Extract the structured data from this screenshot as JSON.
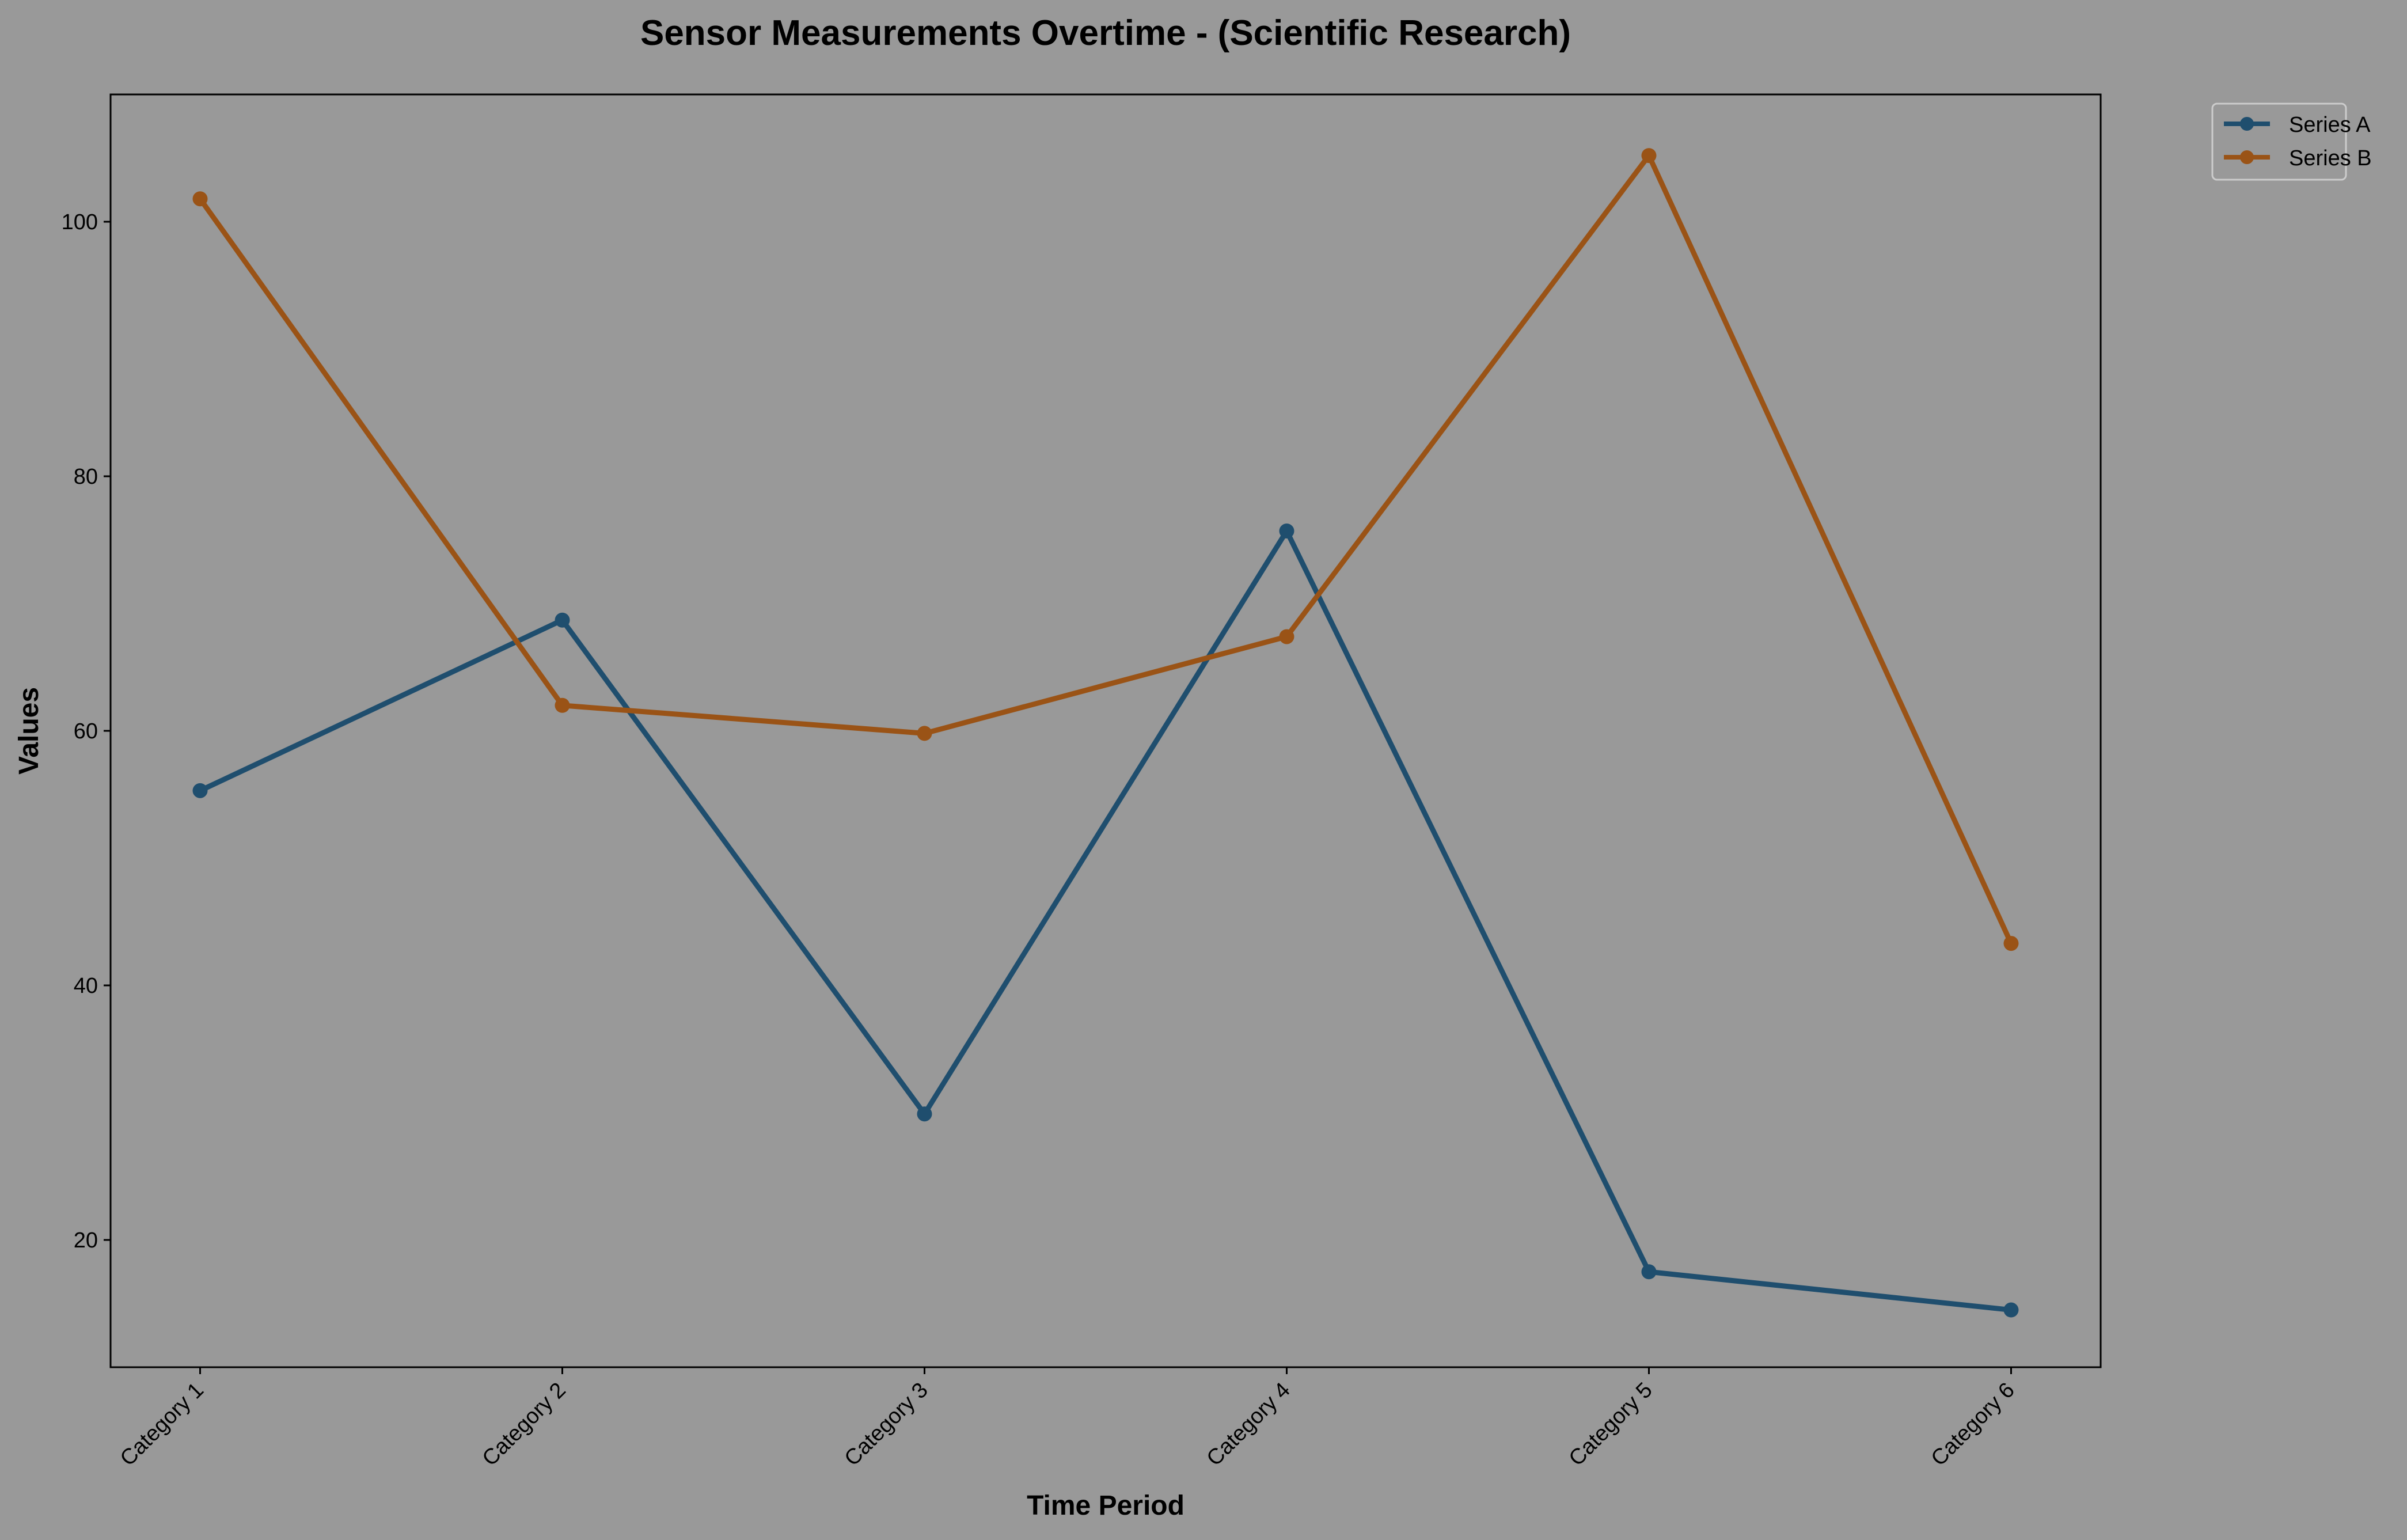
{
  "chart_data": {
    "type": "line",
    "title": "Sensor Measurements Overtime - (Scientific Research)",
    "xlabel": "Time Period",
    "ylabel": "Values",
    "categories": [
      "Category 1",
      "Category 2",
      "Category 3",
      "Category 4",
      "Category 5",
      "Category 6"
    ],
    "series": [
      {
        "name": "Series A",
        "color": "#1f4e6e",
        "values": [
          55.3,
          68.7,
          29.9,
          75.7,
          17.5,
          14.5
        ]
      },
      {
        "name": "Series B",
        "color": "#9a5316",
        "values": [
          101.8,
          62.0,
          59.8,
          67.4,
          105.2,
          43.3
        ]
      }
    ],
    "ylim": [
      10,
      110
    ],
    "yticks": [
      20,
      40,
      60,
      80,
      100
    ],
    "grid": false,
    "legend_position": "outside-top-right",
    "background_color": "#999999",
    "plot_background_color": "#999999"
  }
}
